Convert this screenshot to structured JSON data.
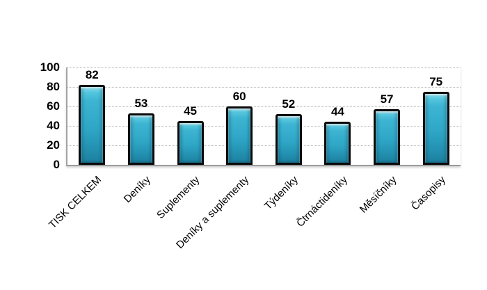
{
  "chart_data": {
    "type": "bar",
    "title": "",
    "xlabel": "",
    "ylabel": "",
    "categories": [
      "TISK CELKEM",
      "Deníky",
      "Suplementy",
      "Deníky a suplementy",
      "Týdeníky",
      "Čtrnáctideníky",
      "Měsíčníky",
      "Časopisy"
    ],
    "values": [
      82,
      53,
      45,
      60,
      52,
      44,
      57,
      75
    ],
    "ylim": [
      0,
      100
    ],
    "yticks": [
      0,
      20,
      40,
      60,
      80,
      100
    ],
    "grid": "dotted-horizontal",
    "legend_position": "none",
    "bar_fill_color": "#2fa6c6",
    "bar_highlight_color": "#8ee2f0",
    "bar_shadow_color": "#1d7f9e",
    "bar_border_color": "#0b0b0b",
    "axis_color": "#9a9a9a",
    "gridline_color": "#b5b5b5",
    "text_color": "#000000",
    "background_color": "#ffffff"
  }
}
